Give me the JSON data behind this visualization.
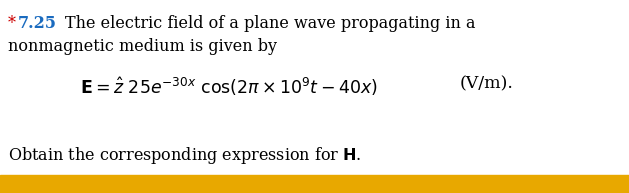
{
  "asterisk": "*",
  "problem_number": "7.25",
  "line1_text": "The electric field of a plane wave propagating in a",
  "line2_text": "nonmagnetic medium is given by",
  "units": "(V/m).",
  "background_color": "#ffffff",
  "text_color": "#000000",
  "number_color": "#1a6bbf",
  "asterisk_color": "#cc0000",
  "highlight_color": "#e8a800",
  "fs_main": 11.5,
  "fs_eq": 12.5
}
